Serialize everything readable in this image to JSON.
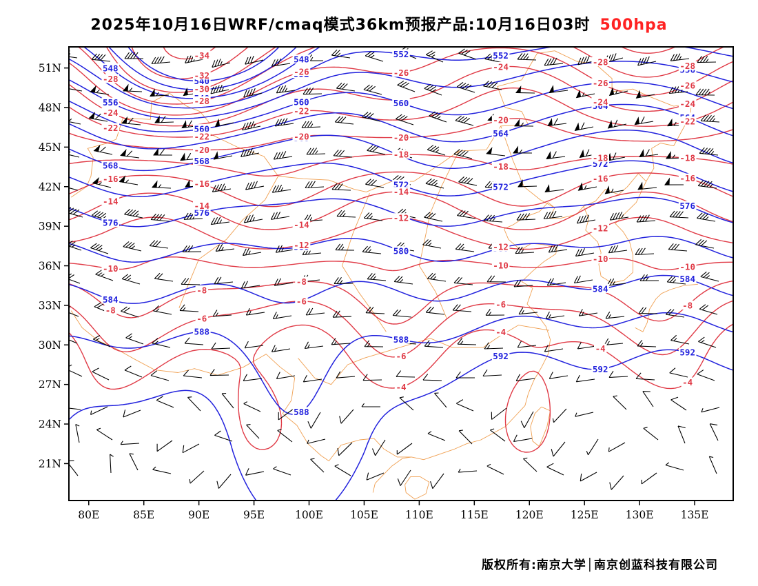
{
  "title": {
    "text": "2025年10月16日WRF/cmaq模式36km预报产品:10月16日03时",
    "level_label": "500hpa",
    "level_color": "#ff2222"
  },
  "footer": {
    "text": "版权所有:南京大学│南京创蓝科技有限公司"
  },
  "axes": {
    "lat_ticks": [
      {
        "label": "51N",
        "lat": 51
      },
      {
        "label": "48N",
        "lat": 48
      },
      {
        "label": "45N",
        "lat": 45
      },
      {
        "label": "42N",
        "lat": 42
      },
      {
        "label": "39N",
        "lat": 39
      },
      {
        "label": "36N",
        "lat": 36
      },
      {
        "label": "33N",
        "lat": 33
      },
      {
        "label": "30N",
        "lat": 30
      },
      {
        "label": "27N",
        "lat": 27
      },
      {
        "label": "24N",
        "lat": 24
      },
      {
        "label": "21N",
        "lat": 21
      }
    ],
    "lon_ticks": [
      {
        "label": "80E",
        "lon": 80
      },
      {
        "label": "85E",
        "lon": 85
      },
      {
        "label": "90E",
        "lon": 90
      },
      {
        "label": "95E",
        "lon": 95
      },
      {
        "label": "100E",
        "lon": 100
      },
      {
        "label": "105E",
        "lon": 105
      },
      {
        "label": "110E",
        "lon": 110
      },
      {
        "label": "115E",
        "lon": 115
      },
      {
        "label": "120E",
        "lon": 120
      },
      {
        "label": "125E",
        "lon": 125
      },
      {
        "label": "130E",
        "lon": 130
      },
      {
        "label": "135E",
        "lon": 135
      }
    ]
  },
  "chart_data": {
    "type": "contour-map",
    "title": "2025年10月16日WRF/cmaq模式36km预报产品:10月16日03时 500hpa",
    "extent": {
      "lon_min": 78.2,
      "lon_max": 138.5,
      "lat_min": 18.2,
      "lat_max": 52.6
    },
    "height_contours": {
      "color": "#2222dd",
      "levels": [
        540,
        544,
        548,
        552,
        556,
        560,
        564,
        568,
        572,
        576,
        580,
        584,
        588,
        592
      ]
    },
    "temperature_contours": {
      "color": "#e03a46",
      "levels": [
        -34,
        -32,
        -30,
        -28,
        -26,
        -24,
        -22,
        -20,
        -18,
        -16,
        -14,
        -12,
        -10,
        -8,
        -6,
        -4
      ]
    },
    "wind_barbs": {
      "color": "#000000"
    },
    "frame_color": "#000000",
    "basemap": {
      "color": "#f0a052",
      "outlines": [
        [
          [
            105.8,
            18.8
          ],
          [
            106,
            19.5
          ],
          [
            106.8,
            20.2
          ],
          [
            107.5,
            20.8
          ],
          [
            108.5,
            21.4
          ],
          [
            109.3,
            21.5
          ],
          [
            110.4,
            21.3
          ],
          [
            111.8,
            21.7
          ],
          [
            113.2,
            22.1
          ],
          [
            114.3,
            22.5
          ],
          [
            115.6,
            22.8
          ],
          [
            116.7,
            23.3
          ],
          [
            117.8,
            23.8
          ],
          [
            118.6,
            24.5
          ],
          [
            119.6,
            25.4
          ],
          [
            119.9,
            26.3
          ],
          [
            120.4,
            27.3
          ],
          [
            121.1,
            28.3
          ],
          [
            121.7,
            29.3
          ],
          [
            121.9,
            30.4
          ],
          [
            121.5,
            31.4
          ],
          [
            120.8,
            32.2
          ],
          [
            119.8,
            33.1
          ],
          [
            120.3,
            34.3
          ],
          [
            119.3,
            34.8
          ],
          [
            120.3,
            35.6
          ],
          [
            121.3,
            36.3
          ],
          [
            122.4,
            36.9
          ],
          [
            122.5,
            37.4
          ],
          [
            121.3,
            37.6
          ],
          [
            120.2,
            37.7
          ],
          [
            119.2,
            37.2
          ],
          [
            118.1,
            38
          ],
          [
            117.7,
            38.8
          ],
          [
            118.5,
            39.1
          ],
          [
            119.6,
            39.7
          ],
          [
            120.9,
            40.1
          ],
          [
            121.7,
            40.8
          ],
          [
            122.3,
            40.4
          ],
          [
            121.8,
            39.6
          ],
          [
            122.8,
            39.6
          ],
          [
            123.8,
            39.8
          ],
          [
            124.3,
            39.9
          ]
        ],
        [
          [
            78.4,
            41.2
          ],
          [
            79.8,
            42
          ],
          [
            80.2,
            42.8
          ],
          [
            80.4,
            44.2
          ],
          [
            79.9,
            44.9
          ],
          [
            81.7,
            45.3
          ],
          [
            82.5,
            45.6
          ],
          [
            83.1,
            47.2
          ],
          [
            85.6,
            47.1
          ],
          [
            85.7,
            48.4
          ],
          [
            87.3,
            49.1
          ],
          [
            88.9,
            48.1
          ],
          [
            90.1,
            47.7
          ],
          [
            90.9,
            46.9
          ],
          [
            91,
            46
          ],
          [
            93.5,
            45
          ],
          [
            95.9,
            44.3
          ],
          [
            97.2,
            42.8
          ],
          [
            99.5,
            42.6
          ],
          [
            101.8,
            42.5
          ],
          [
            104.1,
            41.8
          ],
          [
            105.2,
            41.6
          ],
          [
            107.5,
            42.4
          ],
          [
            109.5,
            42.4
          ],
          [
            111.9,
            43.7
          ],
          [
            113.6,
            44.7
          ],
          [
            116.1,
            44.8
          ],
          [
            117.4,
            46.6
          ],
          [
            119.9,
            46.7
          ],
          [
            119.3,
            47.7
          ],
          [
            117.8,
            48
          ],
          [
            117.1,
            49.6
          ],
          [
            119.3,
            50.1
          ],
          [
            120.7,
            52.1
          ]
        ],
        [
          [
            120.7,
            52.1
          ],
          [
            122.3,
            52.3
          ],
          [
            124.3,
            51.5
          ],
          [
            126,
            51.3
          ],
          [
            127.5,
            50.2
          ],
          [
            127.5,
            49.2
          ],
          [
            129.4,
            49.4
          ],
          [
            130.7,
            48.9
          ],
          [
            133.1,
            48.1
          ],
          [
            134.7,
            48.3
          ],
          [
            134.6,
            47.4
          ],
          [
            133.1,
            45.1
          ],
          [
            131.9,
            45.3
          ],
          [
            131.1,
            44.9
          ],
          [
            131.3,
            43.4
          ],
          [
            130.6,
            42.4
          ],
          [
            129.9,
            43
          ],
          [
            128.9,
            42
          ],
          [
            128.1,
            41.4
          ],
          [
            126.9,
            41.8
          ],
          [
            126,
            40.9
          ],
          [
            124.9,
            40.5
          ],
          [
            124.3,
            39.9
          ]
        ],
        [
          [
            124.9,
            40.5
          ],
          [
            125.4,
            39.6
          ],
          [
            125.1,
            38.7
          ],
          [
            126.2,
            37.8
          ],
          [
            126.5,
            37
          ],
          [
            126.3,
            36.1
          ],
          [
            126.5,
            35.2
          ],
          [
            127.5,
            34.7
          ],
          [
            128.6,
            34.9
          ],
          [
            129.4,
            35.5
          ],
          [
            129.4,
            36.8
          ],
          [
            129.1,
            37.8
          ],
          [
            128.5,
            38.6
          ],
          [
            127.8,
            39.2
          ],
          [
            128.6,
            39.9
          ],
          [
            129.7,
            40.8
          ],
          [
            130.6,
            42.4
          ]
        ],
        [
          [
            108.7,
            19.4
          ],
          [
            109.2,
            20
          ],
          [
            110.1,
            20
          ],
          [
            110.9,
            19.6
          ],
          [
            110.6,
            18.7
          ],
          [
            109.6,
            18.3
          ],
          [
            108.8,
            18.8
          ],
          [
            108.7,
            19.4
          ]
        ],
        [
          [
            121.1,
            25.3
          ],
          [
            121.9,
            25
          ],
          [
            121.6,
            23.8
          ],
          [
            120.9,
            22.3
          ],
          [
            120.3,
            22.7
          ],
          [
            120.1,
            23.8
          ],
          [
            120.5,
            24.8
          ],
          [
            121.1,
            25.3
          ]
        ],
        [
          [
            78.4,
            32.6
          ],
          [
            79.4,
            31.3
          ],
          [
            80.9,
            30.3
          ],
          [
            82.5,
            29.7
          ],
          [
            84.2,
            28.9
          ],
          [
            86,
            28.1
          ],
          [
            88.1,
            27.9
          ],
          [
            89.6,
            28.2
          ],
          [
            91.7,
            27.7
          ],
          [
            94,
            28.3
          ],
          [
            96.1,
            29.3
          ],
          [
            97.4,
            28.3
          ],
          [
            98.7,
            27.5
          ],
          [
            98.4,
            25.8
          ],
          [
            97.6,
            24.8
          ],
          [
            98.9,
            23.9
          ],
          [
            99.9,
            22.5
          ],
          [
            101.1,
            21.6
          ],
          [
            101.8,
            21.2
          ],
          [
            102.9,
            22.4
          ],
          [
            104.6,
            22.8
          ],
          [
            105.9,
            22.9
          ],
          [
            106.8,
            22.1
          ],
          [
            108,
            21.5
          ],
          [
            109.3,
            21.5
          ]
        ],
        [
          [
            129.6,
            31.3
          ],
          [
            130.3,
            31
          ],
          [
            130.7,
            31.7
          ],
          [
            130.9,
            32.7
          ],
          [
            131.5,
            33.5
          ],
          [
            132,
            33.9
          ],
          [
            132.8,
            34.2
          ],
          [
            134,
            34.5
          ],
          [
            135.3,
            34.6
          ]
        ],
        [
          [
            97.2,
            42.8
          ],
          [
            96,
            41
          ],
          [
            94,
            39.5
          ],
          [
            92.5,
            38
          ],
          [
            90,
            36.5
          ],
          [
            89,
            34.5
          ],
          [
            88.2,
            32.8
          ]
        ],
        [
          [
            105.5,
            41.5
          ],
          [
            104,
            38.5
          ],
          [
            103,
            36
          ],
          [
            104.5,
            34
          ],
          [
            105.8,
            32.5
          ],
          [
            107,
            31
          ]
        ],
        [
          [
            113.6,
            44.7
          ],
          [
            112,
            42
          ],
          [
            111,
            40
          ],
          [
            110.5,
            38
          ],
          [
            110,
            36
          ],
          [
            111.5,
            34
          ],
          [
            112.5,
            32
          ]
        ],
        [
          [
            117.4,
            46.6
          ],
          [
            118.5,
            44
          ],
          [
            119.5,
            42
          ],
          [
            121,
            41
          ],
          [
            122.3,
            40.4
          ]
        ],
        [
          [
            121.8,
            31.1
          ],
          [
            119,
            31.5
          ],
          [
            117,
            30.5
          ],
          [
            115.8,
            29.8
          ],
          [
            113,
            29.8
          ],
          [
            111,
            30.5
          ],
          [
            109,
            30
          ],
          [
            107,
            29.5
          ],
          [
            105,
            29
          ],
          [
            103.5,
            28.5
          ],
          [
            102,
            27
          ],
          [
            100.5,
            27.5
          ],
          [
            99,
            29
          ]
        ]
      ]
    }
  }
}
